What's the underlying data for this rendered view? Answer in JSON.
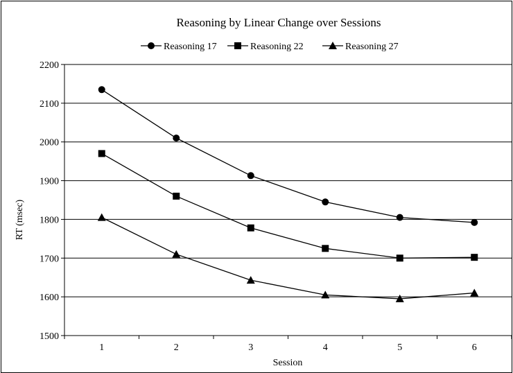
{
  "chart_data": {
    "type": "line",
    "title": "Reasoning  by Linear Change over Sessions",
    "xlabel": "Session",
    "ylabel": "RT (msec)",
    "categories": [
      "1",
      "2",
      "3",
      "4",
      "5",
      "6"
    ],
    "ylim": [
      1500,
      2200
    ],
    "yticks": [
      "1500",
      "1600",
      "1700",
      "1800",
      "1900",
      "2000",
      "2100",
      "2200"
    ],
    "grid": true,
    "legend_position": "top",
    "series": [
      {
        "name": "Reasoning 17",
        "marker": "circle",
        "values": [
          2135,
          2010,
          1913,
          1845,
          1805,
          1792
        ]
      },
      {
        "name": "Reasoning 22",
        "marker": "square",
        "values": [
          1970,
          1860,
          1778,
          1725,
          1700,
          1702
        ]
      },
      {
        "name": "Reasoning 27",
        "marker": "triangle",
        "values": [
          1805,
          1710,
          1643,
          1605,
          1595,
          1610
        ]
      }
    ]
  }
}
